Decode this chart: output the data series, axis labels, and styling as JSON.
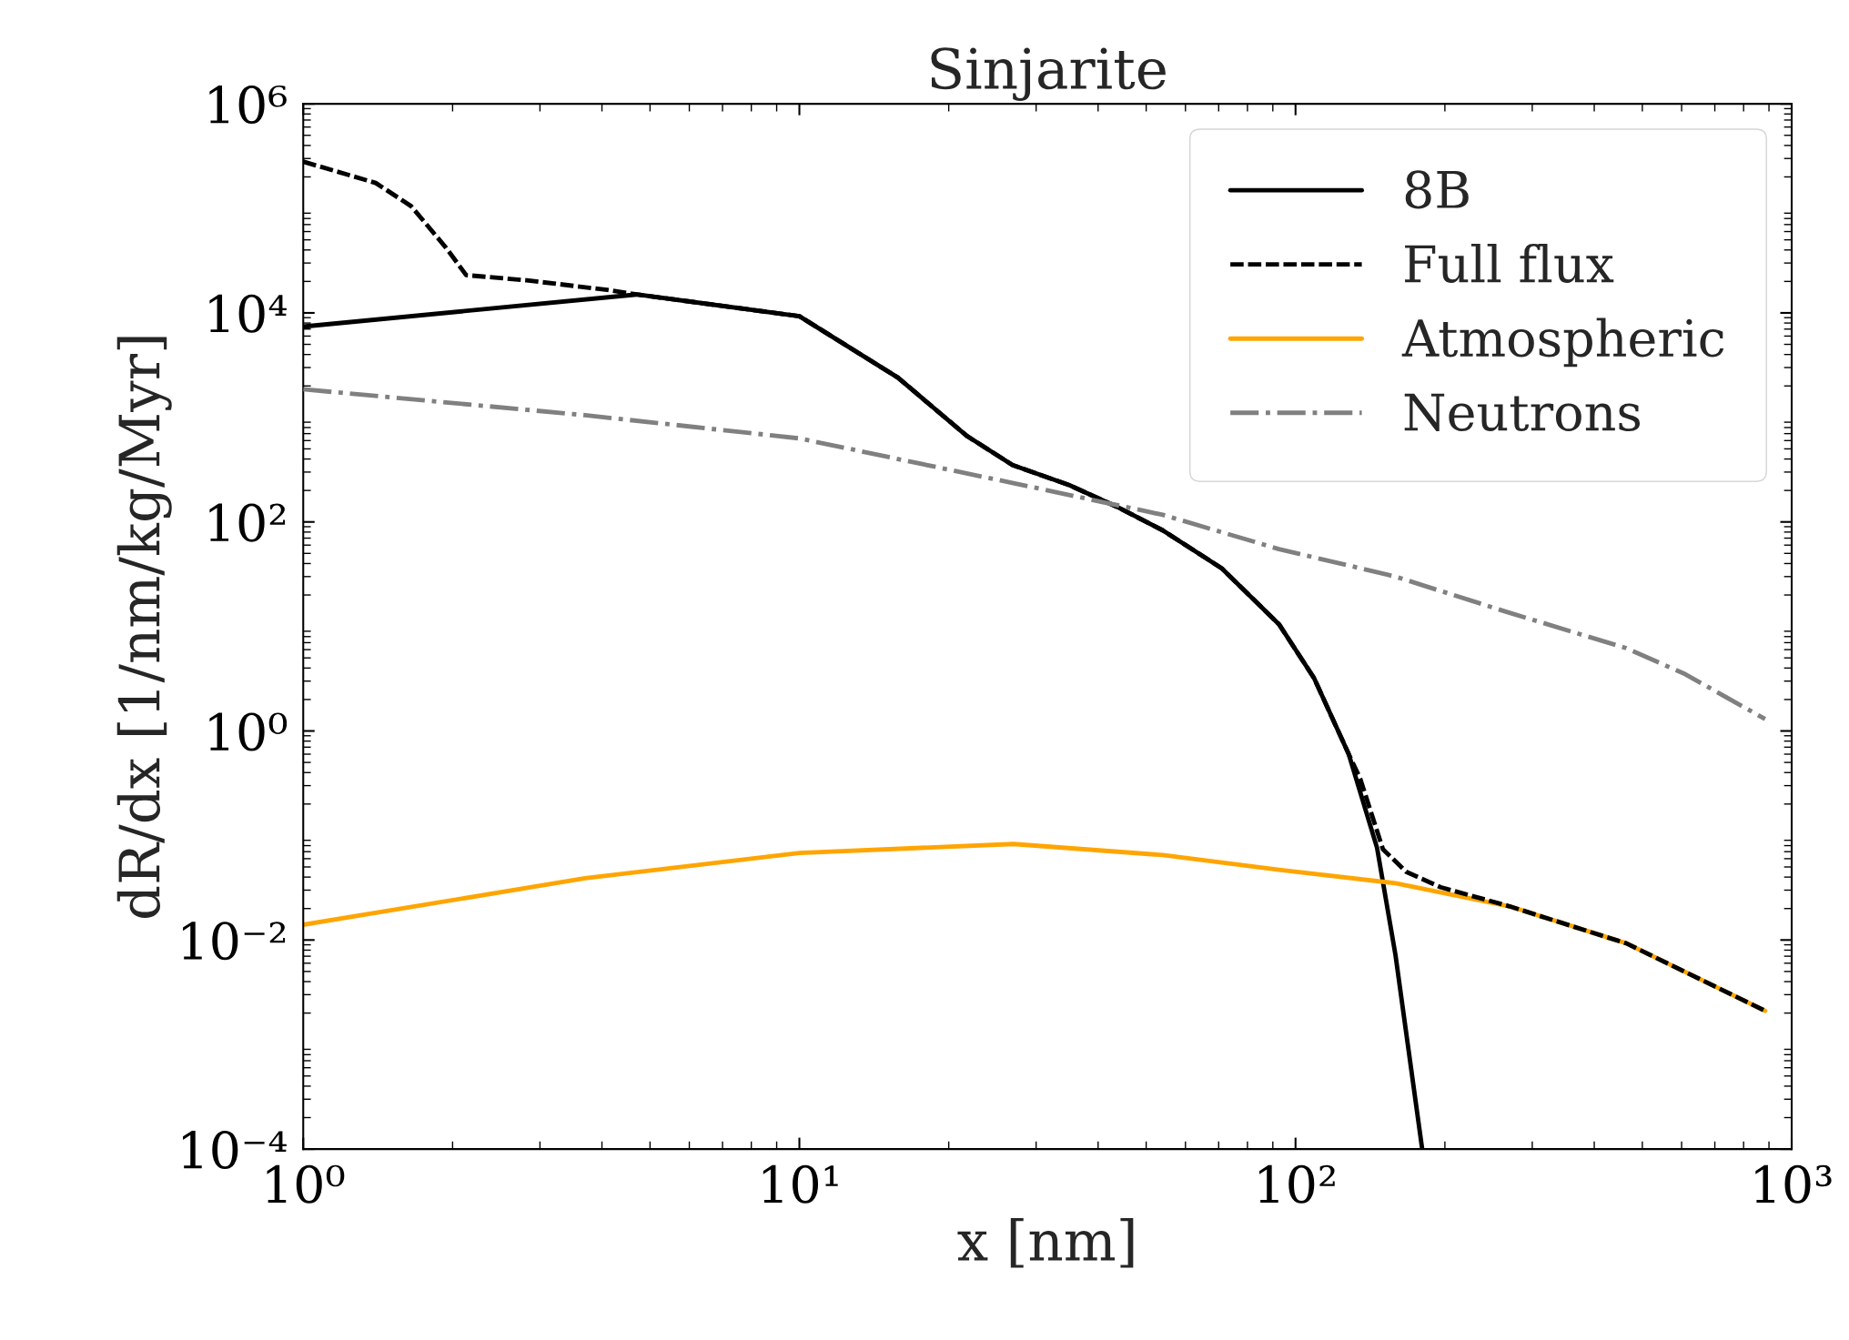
{
  "chart_data": {
    "type": "line",
    "title": "Sinjarite",
    "xlabel": "x [nm]",
    "ylabel": "dR/dx [1/nm/kg/Myr]",
    "log": "xy",
    "grid": false,
    "legend": "top right",
    "xlim": [
      1,
      1000
    ],
    "ylim": [
      0.0001,
      1000000
    ],
    "xticks": [
      {
        "value": 1,
        "label": "10⁰"
      },
      {
        "value": 10,
        "label": "10¹"
      },
      {
        "value": 100,
        "label": "10²"
      },
      {
        "value": 1000,
        "label": "10³"
      }
    ],
    "yticks": [
      {
        "value": 0.0001,
        "label": "10⁻⁴"
      },
      {
        "value": 0.01,
        "label": "10⁻²"
      },
      {
        "value": 1,
        "label": "10⁰"
      },
      {
        "value": 100,
        "label": "10²"
      },
      {
        "value": 10000,
        "label": "10⁴"
      },
      {
        "value": 1000000,
        "label": "10⁶"
      }
    ],
    "series": [
      {
        "name": "8B",
        "color": "#000000",
        "line_style": "solid",
        "x": [
          1,
          4.7,
          10,
          15.8,
          21.8,
          26.9,
          35,
          43.6,
          54,
          71,
          92.6,
          109,
          128,
          146,
          159,
          180
        ],
        "values": [
          7400,
          15000,
          9300,
          2400,
          660,
          350,
          225,
          140,
          83,
          36,
          10.5,
          3.2,
          0.6,
          0.076,
          0.0072,
          0.0001
        ]
      },
      {
        "name": "Full flux",
        "color": "#000000",
        "line_style": "dashed",
        "x": [
          1,
          1.4,
          1.65,
          1.94,
          2.13,
          2.82,
          4.1,
          4.7,
          10,
          15.8,
          21.8,
          26.9,
          35,
          43.6,
          54,
          71,
          92.6,
          109,
          128,
          135,
          150,
          167,
          196,
          270,
          464,
          884
        ],
        "values": [
          280000,
          175000,
          105000,
          42000,
          23000,
          20500,
          16600,
          15000,
          9300,
          2400,
          660,
          350,
          225,
          140,
          83,
          36,
          10.5,
          3.2,
          0.6,
          0.35,
          0.074,
          0.045,
          0.032,
          0.021,
          0.0093,
          0.0021
        ]
      },
      {
        "name": "Atmospheric",
        "color": "#ffa500",
        "line_style": "solid",
        "x": [
          1,
          3.7,
          10,
          27,
          54,
          92.6,
          159,
          270,
          464,
          884
        ],
        "values": [
          0.014,
          0.039,
          0.068,
          0.083,
          0.065,
          0.047,
          0.035,
          0.021,
          0.0093,
          0.0021
        ]
      },
      {
        "name": "Neutrons",
        "color": "#808080",
        "line_style": "dashdot",
        "x": [
          1,
          3.7,
          10,
          27,
          54,
          92.6,
          159,
          270,
          464,
          610,
          884
        ],
        "values": [
          1860,
          1050,
          630,
          235,
          117,
          55,
          30,
          13.5,
          6.2,
          3.5,
          1.3
        ]
      }
    ]
  }
}
